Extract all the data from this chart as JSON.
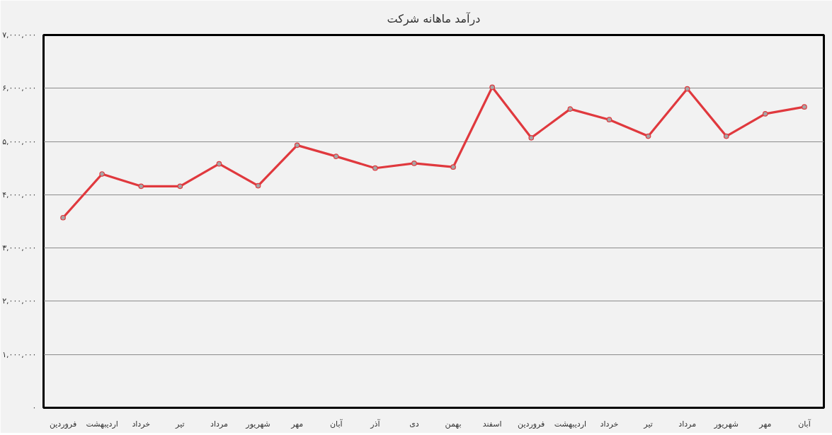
{
  "chart_data": {
    "type": "line",
    "title": "درآمد ماهانه شرکت",
    "categories": [
      "فروردین",
      "اردیبهشت",
      "خرداد",
      "تیر",
      "مرداد",
      "شهریور",
      "مهر",
      "آبان",
      "آذر",
      "دی",
      "بهمن",
      "اسفند",
      "فروردین",
      "اردیبهشت",
      "خرداد",
      "تیر",
      "مرداد",
      "شهریور",
      "مهر",
      "آبان"
    ],
    "series": [
      {
        "color": "#e0393e",
        "values": [
          3570000,
          4390000,
          4160000,
          4160000,
          4580000,
          4170000,
          4930000,
          4720000,
          4500000,
          4590000,
          4520000,
          6020000,
          5070000,
          5610000,
          5410000,
          5100000,
          5990000,
          5100000,
          5520000,
          5650000
        ]
      }
    ],
    "ylim": [
      0,
      7000000
    ],
    "yticks": [
      {
        "value": 0,
        "label": "۰"
      },
      {
        "value": 1000000,
        "label": "۱,۰۰۰,۰۰۰"
      },
      {
        "value": 2000000,
        "label": "۲,۰۰۰,۰۰۰"
      },
      {
        "value": 3000000,
        "label": "۳,۰۰۰,۰۰۰"
      },
      {
        "value": 4000000,
        "label": "۴,۰۰۰,۰۰۰"
      },
      {
        "value": 5000000,
        "label": "۵,۰۰۰,۰۰۰"
      },
      {
        "value": 6000000,
        "label": "۶,۰۰۰,۰۰۰"
      },
      {
        "value": 7000000,
        "label": "۷,۰۰۰,۰۰۰"
      }
    ],
    "grid": "y",
    "marker": "circle",
    "line_style": "solid"
  }
}
